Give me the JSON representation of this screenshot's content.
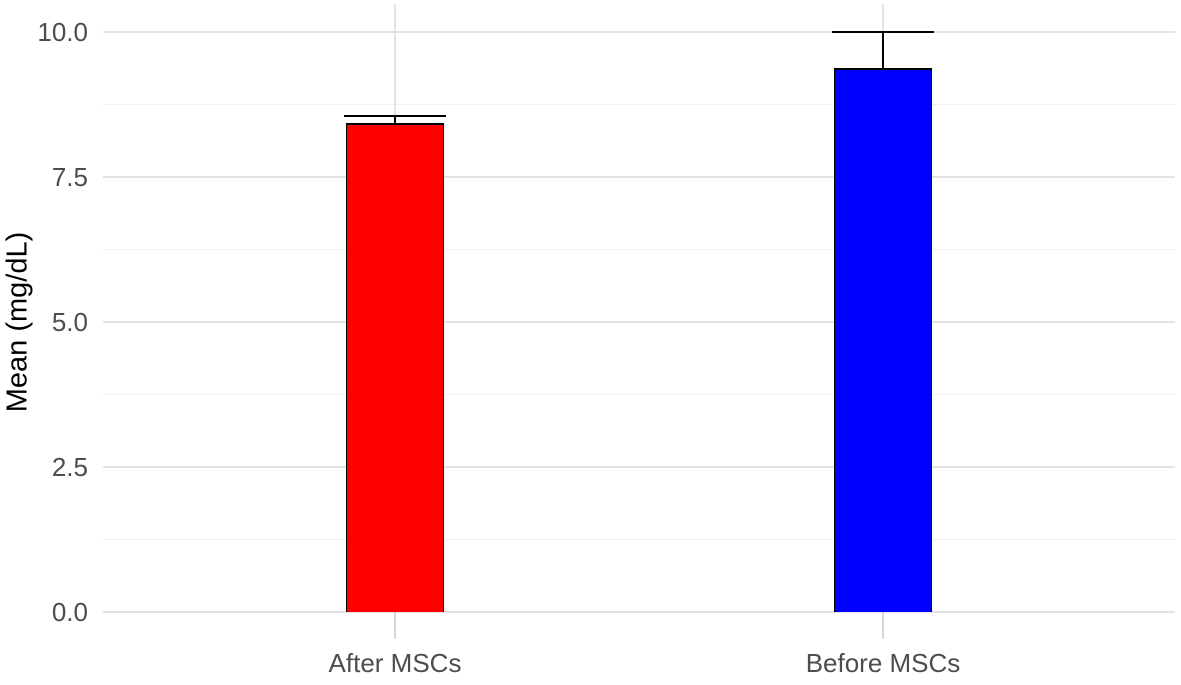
{
  "chart_data": {
    "type": "bar",
    "title": "",
    "xlabel": "",
    "ylabel": "Mean (mg/dL)",
    "categories": [
      "After MSCs",
      "Before MSCs"
    ],
    "values": [
      8.43,
      9.38
    ],
    "error_upper": [
      8.55,
      10.0
    ],
    "bar_colors": [
      "#ff0000",
      "#0000ff"
    ],
    "bar_outline_color": "#000000",
    "errorbar_color": "#000000",
    "ylim": [
      0,
      10.48
    ],
    "yticks": [
      0,
      2.5,
      5,
      7.5,
      10
    ],
    "ytick_labels": [
      "0.0",
      "2.5",
      "5.0",
      "7.5",
      "10.0"
    ],
    "minor_gridlines": [
      1.25,
      3.75,
      6.25,
      8.75
    ],
    "grid": true,
    "legend_position": "none",
    "tick_text_color": "#4d4d4d",
    "axis_title_color": "#000000",
    "major_grid_color": "#e3e3e3",
    "minor_grid_color": "#f1f1f1",
    "tick_mark_color": "#d6d6d6",
    "background_color": "#ffffff"
  }
}
